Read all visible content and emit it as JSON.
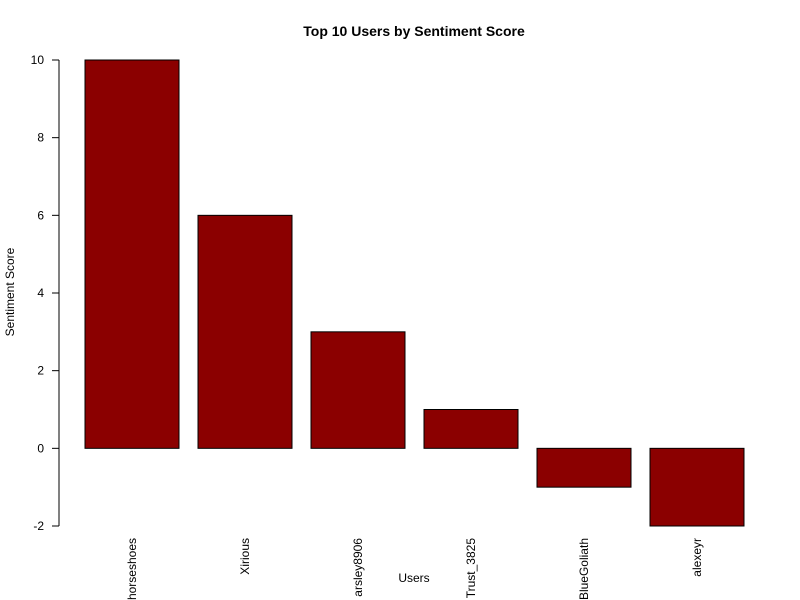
{
  "chart_data": {
    "type": "bar",
    "title": "Top 10 Users by Sentiment Score",
    "xlabel": "Users",
    "ylabel": "Sentiment Score",
    "categories": [
      "horseshoes",
      "Xirious",
      "arsley8906",
      "Trust_3825",
      "BlueGoliath",
      "alexeyr"
    ],
    "values": [
      10,
      6,
      3,
      1,
      -1,
      -2
    ],
    "ylim": [
      -2,
      10
    ],
    "yticks": [
      -2,
      0,
      2,
      4,
      6,
      8,
      10
    ],
    "bar_color": "#8b0000",
    "grid": false,
    "legend": "none"
  }
}
